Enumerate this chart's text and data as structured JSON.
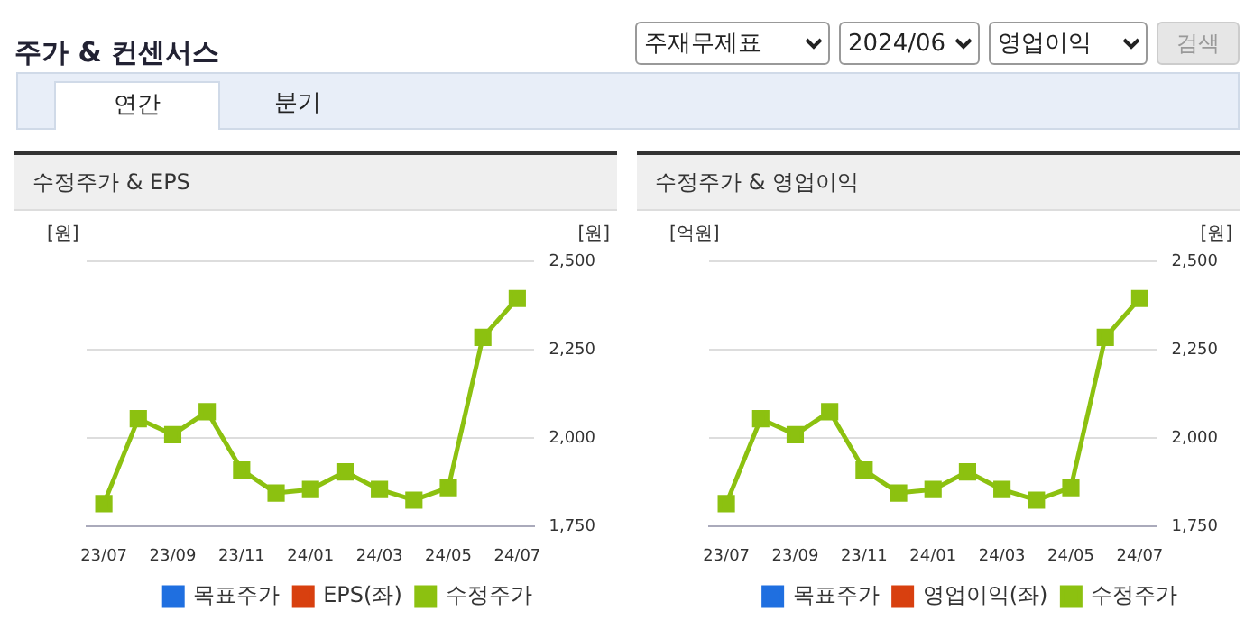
{
  "chart_data": [
    {
      "type": "other",
      "title": "주가 & 컨센서스",
      "annotations": [
        "주재무제표",
        "2024/06",
        "영업이익",
        "검색",
        "연간",
        "분기"
      ]
    },
    {
      "type": "line",
      "title": "수정주가 & EPS",
      "ylabel": "[원]",
      "y2label": "[원]",
      "categories": [
        "23/07",
        null,
        "23/09",
        null,
        "23/11",
        null,
        "24/01",
        null,
        "24/03",
        null,
        "24/05",
        null,
        "24/07"
      ],
      "series": [
        {
          "name": "목표주가",
          "color": "#1f6fe0",
          "values": [
            null,
            null,
            null,
            null,
            null,
            null,
            null,
            null,
            null,
            null,
            null,
            null,
            null
          ]
        },
        {
          "name": "EPS(좌)",
          "color": "#d8400f",
          "values": [
            null,
            null,
            null,
            null,
            null,
            null,
            null,
            null,
            null,
            null,
            null,
            null,
            null
          ]
        },
        {
          "name": "수정주가",
          "color": "#8cc110",
          "axis": "y2",
          "values": [
            1815,
            2055,
            2010,
            2075,
            1910,
            1845,
            1855,
            1905,
            1855,
            1825,
            1860,
            2285,
            2395
          ]
        }
      ],
      "y2lim": [
        1750,
        2500
      ],
      "y2ticks": [
        {
          "value": 1750,
          "label": "1,750"
        },
        {
          "value": 2000,
          "label": "2,000"
        },
        {
          "value": 2250,
          "label": "2,250"
        },
        {
          "value": 2500,
          "label": "2,500"
        }
      ],
      "grid": "y",
      "legend": "bottom",
      "marker": "square"
    },
    {
      "type": "line",
      "title": "수정주가 & 영업이익",
      "ylabel": "[억원]",
      "y2label": "[원]",
      "categories": [
        "23/07",
        null,
        "23/09",
        null,
        "23/11",
        null,
        "24/01",
        null,
        "24/03",
        null,
        "24/05",
        null,
        "24/07"
      ],
      "series": [
        {
          "name": "목표주가",
          "color": "#1f6fe0",
          "values": [
            null,
            null,
            null,
            null,
            null,
            null,
            null,
            null,
            null,
            null,
            null,
            null,
            null
          ]
        },
        {
          "name": "영업이익(좌)",
          "color": "#d8400f",
          "values": [
            null,
            null,
            null,
            null,
            null,
            null,
            null,
            null,
            null,
            null,
            null,
            null,
            null
          ]
        },
        {
          "name": "수정주가",
          "color": "#8cc110",
          "axis": "y2",
          "values": [
            1815,
            2055,
            2010,
            2075,
            1910,
            1845,
            1855,
            1905,
            1855,
            1825,
            1860,
            2285,
            2395
          ]
        }
      ],
      "y2lim": [
        1750,
        2500
      ],
      "y2ticks": [
        {
          "value": 1750,
          "label": "1,750"
        },
        {
          "value": 2000,
          "label": "2,000"
        },
        {
          "value": 2250,
          "label": "2,250"
        },
        {
          "value": 2500,
          "label": "2,500"
        }
      ],
      "grid": "y",
      "legend": "bottom",
      "marker": "square"
    }
  ]
}
